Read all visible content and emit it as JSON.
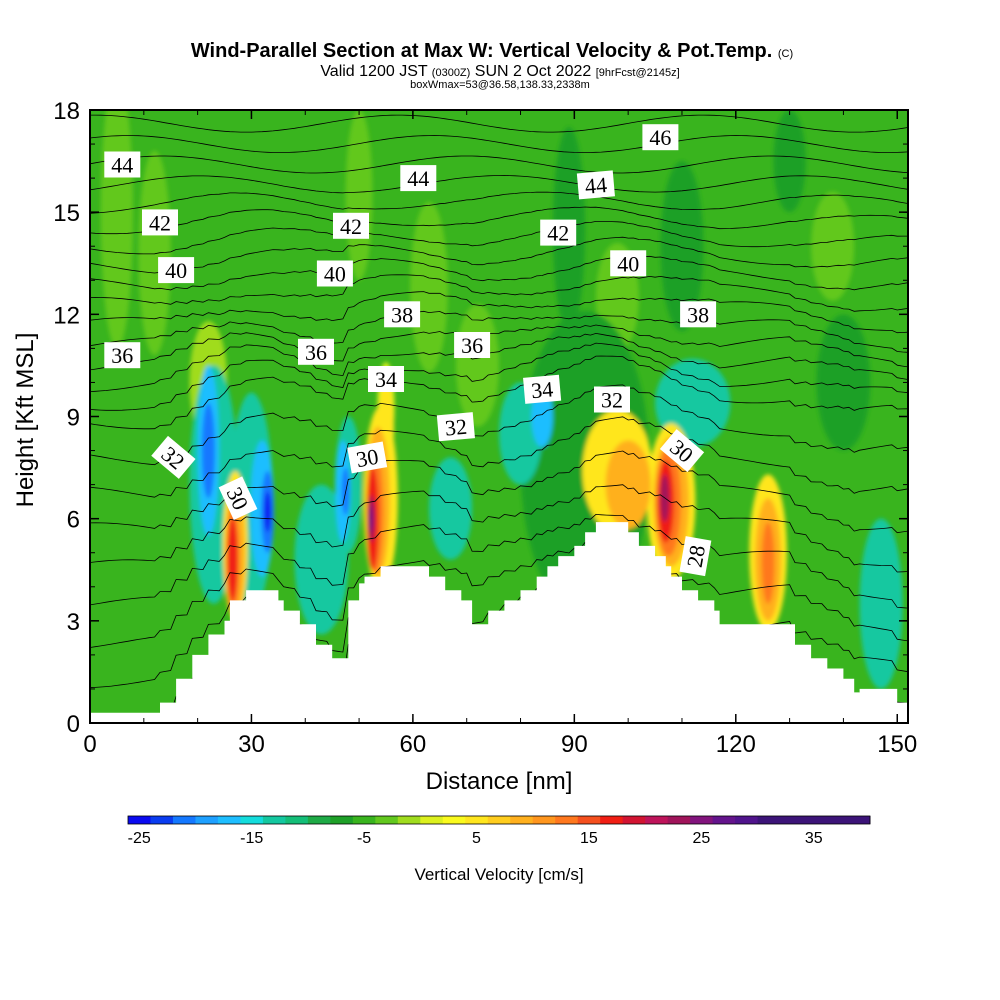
{
  "title": {
    "main": "Wind-Parallel Section at Max W: Vertical Velocity & Pot.Temp.",
    "main_suffix": "(C)",
    "line2_a": "Valid 1200 JST",
    "line2_b": "(0300Z)",
    "line2_c": "SUN 2 Oct 2022",
    "line2_d": "[9hrFcst@2145z]",
    "line3": "boxWmax=53@36.58,138.33,2338m"
  },
  "chart_data": {
    "type": "heatmap",
    "xlabel": "Distance [nm]",
    "ylabel": "Height [Kft MSL]",
    "xlim": [
      0,
      152
    ],
    "ylim": [
      0,
      18
    ],
    "x_ticks": [
      "0",
      "30",
      "60",
      "90",
      "120",
      "150"
    ],
    "x_tick_values": [
      0,
      30,
      60,
      90,
      120,
      150
    ],
    "y_ticks": [
      "0",
      "3",
      "6",
      "9",
      "12",
      "15",
      "18"
    ],
    "y_tick_values": [
      0,
      3,
      6,
      9,
      12,
      15,
      18
    ],
    "background_color": "#39b41e",
    "terrain": [
      [
        0,
        0.3
      ],
      [
        13,
        0.3
      ],
      [
        13,
        0.6
      ],
      [
        16,
        0.6
      ],
      [
        16,
        1.3
      ],
      [
        19,
        1.3
      ],
      [
        19,
        2
      ],
      [
        22,
        2
      ],
      [
        22,
        2.6
      ],
      [
        25,
        2.6
      ],
      [
        25,
        3
      ],
      [
        26,
        3
      ],
      [
        26,
        3.6
      ],
      [
        29,
        3.6
      ],
      [
        29,
        3.9
      ],
      [
        35,
        3.9
      ],
      [
        35,
        3.6
      ],
      [
        36,
        3.6
      ],
      [
        36,
        3.3
      ],
      [
        39,
        3.3
      ],
      [
        39,
        2.9
      ],
      [
        42,
        2.9
      ],
      [
        42,
        2.3
      ],
      [
        45,
        2.3
      ],
      [
        45,
        1.9
      ],
      [
        48,
        1.9
      ],
      [
        48,
        3.6
      ],
      [
        50,
        3.6
      ],
      [
        50,
        4.1
      ],
      [
        51,
        4.1
      ],
      [
        51,
        4.3
      ],
      [
        54,
        4.3
      ],
      [
        54,
        4.6
      ],
      [
        63,
        4.6
      ],
      [
        63,
        4.3
      ],
      [
        66,
        4.3
      ],
      [
        66,
        3.9
      ],
      [
        69,
        3.9
      ],
      [
        69,
        3.6
      ],
      [
        71,
        3.6
      ],
      [
        71,
        2.9
      ],
      [
        74,
        2.9
      ],
      [
        74,
        3.3
      ],
      [
        77,
        3.3
      ],
      [
        77,
        3.6
      ],
      [
        80,
        3.6
      ],
      [
        80,
        3.9
      ],
      [
        83,
        3.9
      ],
      [
        83,
        4.3
      ],
      [
        85,
        4.3
      ],
      [
        85,
        4.6
      ],
      [
        87,
        4.6
      ],
      [
        87,
        4.9
      ],
      [
        90,
        4.9
      ],
      [
        90,
        5.2
      ],
      [
        92,
        5.2
      ],
      [
        92,
        5.6
      ],
      [
        94,
        5.6
      ],
      [
        94,
        5.9
      ],
      [
        100,
        5.9
      ],
      [
        100,
        5.6
      ],
      [
        102,
        5.6
      ],
      [
        102,
        5.2
      ],
      [
        105,
        5.2
      ],
      [
        105,
        4.9
      ],
      [
        107,
        4.9
      ],
      [
        107,
        4.6
      ],
      [
        108,
        4.6
      ],
      [
        108,
        4.3
      ],
      [
        110,
        4.3
      ],
      [
        110,
        3.9
      ],
      [
        113,
        3.9
      ],
      [
        113,
        3.6
      ],
      [
        116,
        3.6
      ],
      [
        116,
        3.3
      ],
      [
        117,
        3.3
      ],
      [
        117,
        2.9
      ],
      [
        131,
        2.9
      ],
      [
        131,
        2.3
      ],
      [
        134,
        2.3
      ],
      [
        134,
        1.9
      ],
      [
        137,
        1.9
      ],
      [
        137,
        1.6
      ],
      [
        140,
        1.6
      ],
      [
        140,
        1.3
      ],
      [
        142,
        1.3
      ],
      [
        142,
        0.9
      ],
      [
        143,
        0.9
      ],
      [
        143,
        1.0
      ],
      [
        150,
        1.0
      ],
      [
        150,
        0.6
      ],
      [
        152,
        0.6
      ]
    ],
    "vertical_velocity_features": [
      {
        "x": 5,
        "y": 15.0,
        "w": 3,
        "h": 4.0,
        "color": "#62c81e"
      },
      {
        "x": 12,
        "y": 13.8,
        "w": 3,
        "h": 3.0,
        "color": "#62c81e"
      },
      {
        "x": 50,
        "y": 15.5,
        "w": 2.5,
        "h": 2.5,
        "color": "#62c81e"
      },
      {
        "x": 63,
        "y": 12.8,
        "w": 3.5,
        "h": 2.5,
        "color": "#62c81e"
      },
      {
        "x": 72,
        "y": 10.5,
        "w": 4,
        "h": 1.8,
        "color": "#62c81e"
      },
      {
        "x": 98,
        "y": 12.5,
        "w": 4,
        "h": 1.6,
        "color": "#62c81e"
      },
      {
        "x": 138,
        "y": 14.0,
        "w": 4,
        "h": 1.6,
        "color": "#62c81e"
      },
      {
        "x": 89,
        "y": 14.5,
        "w": 3,
        "h": 3.0,
        "color": "#1ea028"
      },
      {
        "x": 110,
        "y": 14.0,
        "w": 4,
        "h": 2.5,
        "color": "#1ea028"
      },
      {
        "x": 130,
        "y": 16.5,
        "w": 3,
        "h": 1.5,
        "color": "#1ea028"
      },
      {
        "x": 140,
        "y": 10.0,
        "w": 5,
        "h": 2.0,
        "color": "#1ea028"
      },
      {
        "x": 92,
        "y": 7.6,
        "w": 12,
        "h": 4.5,
        "color": "#1ea028"
      },
      {
        "x": 22,
        "y": 10.0,
        "w": 3.5,
        "h": 1.8,
        "color": "#a0dc1e"
      },
      {
        "x": 55,
        "y": 9.3,
        "w": 1.6,
        "h": 1.3,
        "color": "#dcf01e"
      },
      {
        "x": 55,
        "y": 8.7,
        "w": 1.5,
        "h": 1.3,
        "color": "#ffe61e"
      },
      {
        "x": 23,
        "y": 7.0,
        "w": 4.5,
        "h": 3.5,
        "color": "#14c8a0"
      },
      {
        "x": 30,
        "y": 6.5,
        "w": 4.0,
        "h": 3.2,
        "color": "#14c8a0"
      },
      {
        "x": 43,
        "y": 4.8,
        "w": 5.0,
        "h": 2.2,
        "color": "#14c8a0"
      },
      {
        "x": 48,
        "y": 7.0,
        "w": 2.5,
        "h": 2.0,
        "color": "#14c8a0"
      },
      {
        "x": 67,
        "y": 6.3,
        "w": 4,
        "h": 1.5,
        "color": "#14c8a0"
      },
      {
        "x": 80,
        "y": 8.5,
        "w": 4,
        "h": 1.5,
        "color": "#14c8a0"
      },
      {
        "x": 112,
        "y": 9.4,
        "w": 7,
        "h": 1.3,
        "color": "#14c8a0"
      },
      {
        "x": 147,
        "y": 3.5,
        "w": 4,
        "h": 2.5,
        "color": "#14c8a0"
      },
      {
        "x": 22,
        "y": 8.0,
        "w": 2.0,
        "h": 2.5,
        "color": "#1ebeff"
      },
      {
        "x": 32,
        "y": 6.3,
        "w": 2.2,
        "h": 2.0,
        "color": "#1ebeff"
      },
      {
        "x": 47,
        "y": 6.8,
        "w": 1.4,
        "h": 1.5,
        "color": "#1ebeff"
      },
      {
        "x": 84,
        "y": 9.0,
        "w": 2.0,
        "h": 0.9,
        "color": "#1ebeff"
      },
      {
        "x": 22,
        "y": 8.0,
        "w": 1.2,
        "h": 1.4,
        "color": "#1478ff"
      },
      {
        "x": 33,
        "y": 6.2,
        "w": 1.2,
        "h": 1.2,
        "color": "#1478ff"
      },
      {
        "x": 47.5,
        "y": 6.8,
        "w": 0.7,
        "h": 0.7,
        "color": "#1478ff"
      },
      {
        "x": 33,
        "y": 6.2,
        "w": 0.6,
        "h": 0.6,
        "color": "#0a0af0"
      },
      {
        "x": 27,
        "y": 5.2,
        "w": 2.3,
        "h": 2.2,
        "color": "#ffe61e"
      },
      {
        "x": 54,
        "y": 6.6,
        "w": 3.2,
        "h": 2.7,
        "color": "#ffe61e"
      },
      {
        "x": 98,
        "y": 7.4,
        "w": 6.5,
        "h": 1.8,
        "color": "#ffe61e"
      },
      {
        "x": 108,
        "y": 6.5,
        "w": 4.5,
        "h": 2.3,
        "color": "#ffe61e"
      },
      {
        "x": 126,
        "y": 5.0,
        "w": 3.5,
        "h": 2.3,
        "color": "#ffe61e"
      },
      {
        "x": 27,
        "y": 5.0,
        "w": 1.8,
        "h": 1.9,
        "color": "#ffb01e"
      },
      {
        "x": 53.5,
        "y": 6.5,
        "w": 2.2,
        "h": 2.2,
        "color": "#ffb01e"
      },
      {
        "x": 100,
        "y": 7.0,
        "w": 4.2,
        "h": 1.3,
        "color": "#ffb01e"
      },
      {
        "x": 108,
        "y": 6.5,
        "w": 3.3,
        "h": 1.9,
        "color": "#ffb01e"
      },
      {
        "x": 126,
        "y": 4.8,
        "w": 2.4,
        "h": 1.8,
        "color": "#ffb01e"
      },
      {
        "x": 26.5,
        "y": 4.8,
        "w": 1.3,
        "h": 1.6,
        "color": "#ff781e"
      },
      {
        "x": 53,
        "y": 6.2,
        "w": 1.5,
        "h": 1.8,
        "color": "#ff781e"
      },
      {
        "x": 107.5,
        "y": 6.5,
        "w": 2.3,
        "h": 1.6,
        "color": "#ff781e"
      },
      {
        "x": 126,
        "y": 4.7,
        "w": 1.2,
        "h": 1.2,
        "color": "#ff781e"
      },
      {
        "x": 26.5,
        "y": 4.8,
        "w": 0.9,
        "h": 1.2,
        "color": "#f01e14"
      },
      {
        "x": 52.5,
        "y": 6.0,
        "w": 1.1,
        "h": 1.5,
        "color": "#f01e14"
      },
      {
        "x": 107,
        "y": 6.5,
        "w": 1.5,
        "h": 1.2,
        "color": "#f01e14"
      },
      {
        "x": 52.3,
        "y": 6.0,
        "w": 0.6,
        "h": 0.7,
        "color": "#a0145a"
      },
      {
        "x": 106.8,
        "y": 6.6,
        "w": 0.8,
        "h": 0.7,
        "color": "#a0145a"
      },
      {
        "x": 52.2,
        "y": 6.0,
        "w": 0.3,
        "h": 0.4,
        "color": "#64148c"
      }
    ],
    "theta_contour_levels": [
      24,
      25,
      26,
      27,
      28,
      29,
      30,
      31,
      32,
      33,
      34,
      35,
      36,
      37,
      38,
      39,
      40,
      41,
      42,
      43,
      44,
      45,
      46,
      47
    ],
    "contour_labels": [
      {
        "text": "44",
        "x": 6,
        "y": 16.4,
        "angle": 0
      },
      {
        "text": "42",
        "x": 13,
        "y": 14.7,
        "angle": 0
      },
      {
        "text": "40",
        "x": 16,
        "y": 13.3,
        "angle": 0
      },
      {
        "text": "36",
        "x": 6,
        "y": 10.8,
        "angle": 0
      },
      {
        "text": "32",
        "x": 15.5,
        "y": 7.8,
        "angle": 40
      },
      {
        "text": "30",
        "x": 27.5,
        "y": 6.6,
        "angle": 65
      },
      {
        "text": "44",
        "x": 61,
        "y": 16.0,
        "angle": 0
      },
      {
        "text": "42",
        "x": 48.5,
        "y": 14.6,
        "angle": 0
      },
      {
        "text": "40",
        "x": 45.5,
        "y": 13.2,
        "angle": 0
      },
      {
        "text": "38",
        "x": 58,
        "y": 12.0,
        "angle": 0
      },
      {
        "text": "36",
        "x": 42,
        "y": 10.9,
        "angle": 0
      },
      {
        "text": "34",
        "x": 55,
        "y": 10.1,
        "angle": 0
      },
      {
        "text": "30",
        "x": 51.5,
        "y": 7.8,
        "angle": -10
      },
      {
        "text": "36",
        "x": 71,
        "y": 11.1,
        "angle": 0
      },
      {
        "text": "32",
        "x": 68,
        "y": 8.7,
        "angle": -5
      },
      {
        "text": "34",
        "x": 84,
        "y": 9.8,
        "angle": -5
      },
      {
        "text": "32",
        "x": 97,
        "y": 9.5,
        "angle": 0
      },
      {
        "text": "44",
        "x": 94,
        "y": 15.8,
        "angle": -5
      },
      {
        "text": "42",
        "x": 87,
        "y": 14.4,
        "angle": 0
      },
      {
        "text": "46",
        "x": 106,
        "y": 17.2,
        "angle": 0
      },
      {
        "text": "40",
        "x": 100,
        "y": 13.5,
        "angle": 0
      },
      {
        "text": "38",
        "x": 113,
        "y": 12.0,
        "angle": 0
      },
      {
        "text": "30",
        "x": 110,
        "y": 8.0,
        "angle": 40
      },
      {
        "text": "28",
        "x": 112.5,
        "y": 4.9,
        "angle": -80
      }
    ],
    "colorbar": {
      "label": "Vertical Velocity [cm/s]",
      "min": -26,
      "max": 40,
      "step": 2,
      "tick_labels": [
        "-25",
        "-15",
        "-5",
        "5",
        "15",
        "25",
        "35"
      ],
      "tick_values": [
        -25,
        -15,
        -5,
        5,
        15,
        25,
        35
      ],
      "colors": [
        "#0a0af0",
        "#0a3cf0",
        "#1478ff",
        "#1ea0ff",
        "#1ebeff",
        "#14dcdc",
        "#14c8a0",
        "#14be78",
        "#1eaa46",
        "#1ea028",
        "#39b41e",
        "#62c81e",
        "#a0dc1e",
        "#dcf01e",
        "#fafa1e",
        "#ffe61e",
        "#ffcd1e",
        "#ffb01e",
        "#ff961e",
        "#ff781e",
        "#f5501e",
        "#f01e14",
        "#d21432",
        "#be145a",
        "#a0145a",
        "#82147d",
        "#64148c",
        "#50148c",
        "#3c1478",
        "#3c1478",
        "#3c1478",
        "#3c1478",
        "#3c1478"
      ]
    }
  }
}
